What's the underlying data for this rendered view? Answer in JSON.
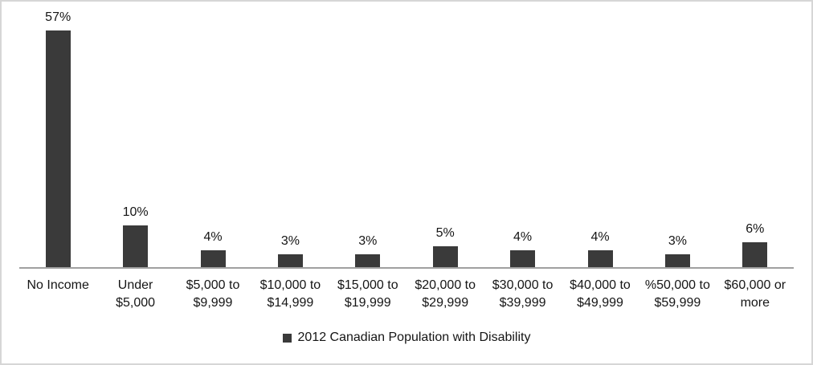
{
  "chart_data": {
    "type": "bar",
    "categories": [
      "No Income",
      "Under $5,000",
      "$5,000 to $9,999",
      "$10,000 to $14,999",
      "$15,000 to $19,999",
      "$20,000 to $29,999",
      "$30,000 to $39,999",
      "$40,000 to $49,999",
      "%50,000 to $59,999",
      "$60,000 or more"
    ],
    "category_label_lines": [
      [
        "No Income"
      ],
      [
        "Under",
        "$5,000"
      ],
      [
        "$5,000 to",
        "$9,999"
      ],
      [
        "$10,000 to",
        "$14,999"
      ],
      [
        "$15,000 to",
        "$19,999"
      ],
      [
        "$20,000 to",
        "$29,999"
      ],
      [
        "$30,000 to",
        "$39,999"
      ],
      [
        "$40,000 to",
        "$49,999"
      ],
      [
        "%50,000 to",
        "$59,999"
      ],
      [
        "$60,000 or",
        "more"
      ]
    ],
    "series": [
      {
        "name": "2012 Canadian Population with Disability",
        "values": [
          57,
          10,
          4,
          3,
          3,
          5,
          4,
          4,
          3,
          6
        ]
      }
    ],
    "data_labels": [
      "57%",
      "10%",
      "4%",
      "3%",
      "3%",
      "5%",
      "4%",
      "4%",
      "3%",
      "6%"
    ],
    "ylim": [
      0,
      60
    ],
    "grid": false,
    "y_axis_visible": false,
    "legend": {
      "position": "bottom",
      "entries": [
        "2012 Canadian Population with Disability"
      ]
    },
    "colors": {
      "bar": "#3a3a3a",
      "axis_line": "#a0a0a0",
      "text": "#151515",
      "frame_border": "#d6d6d6",
      "background": "#ffffff"
    }
  }
}
